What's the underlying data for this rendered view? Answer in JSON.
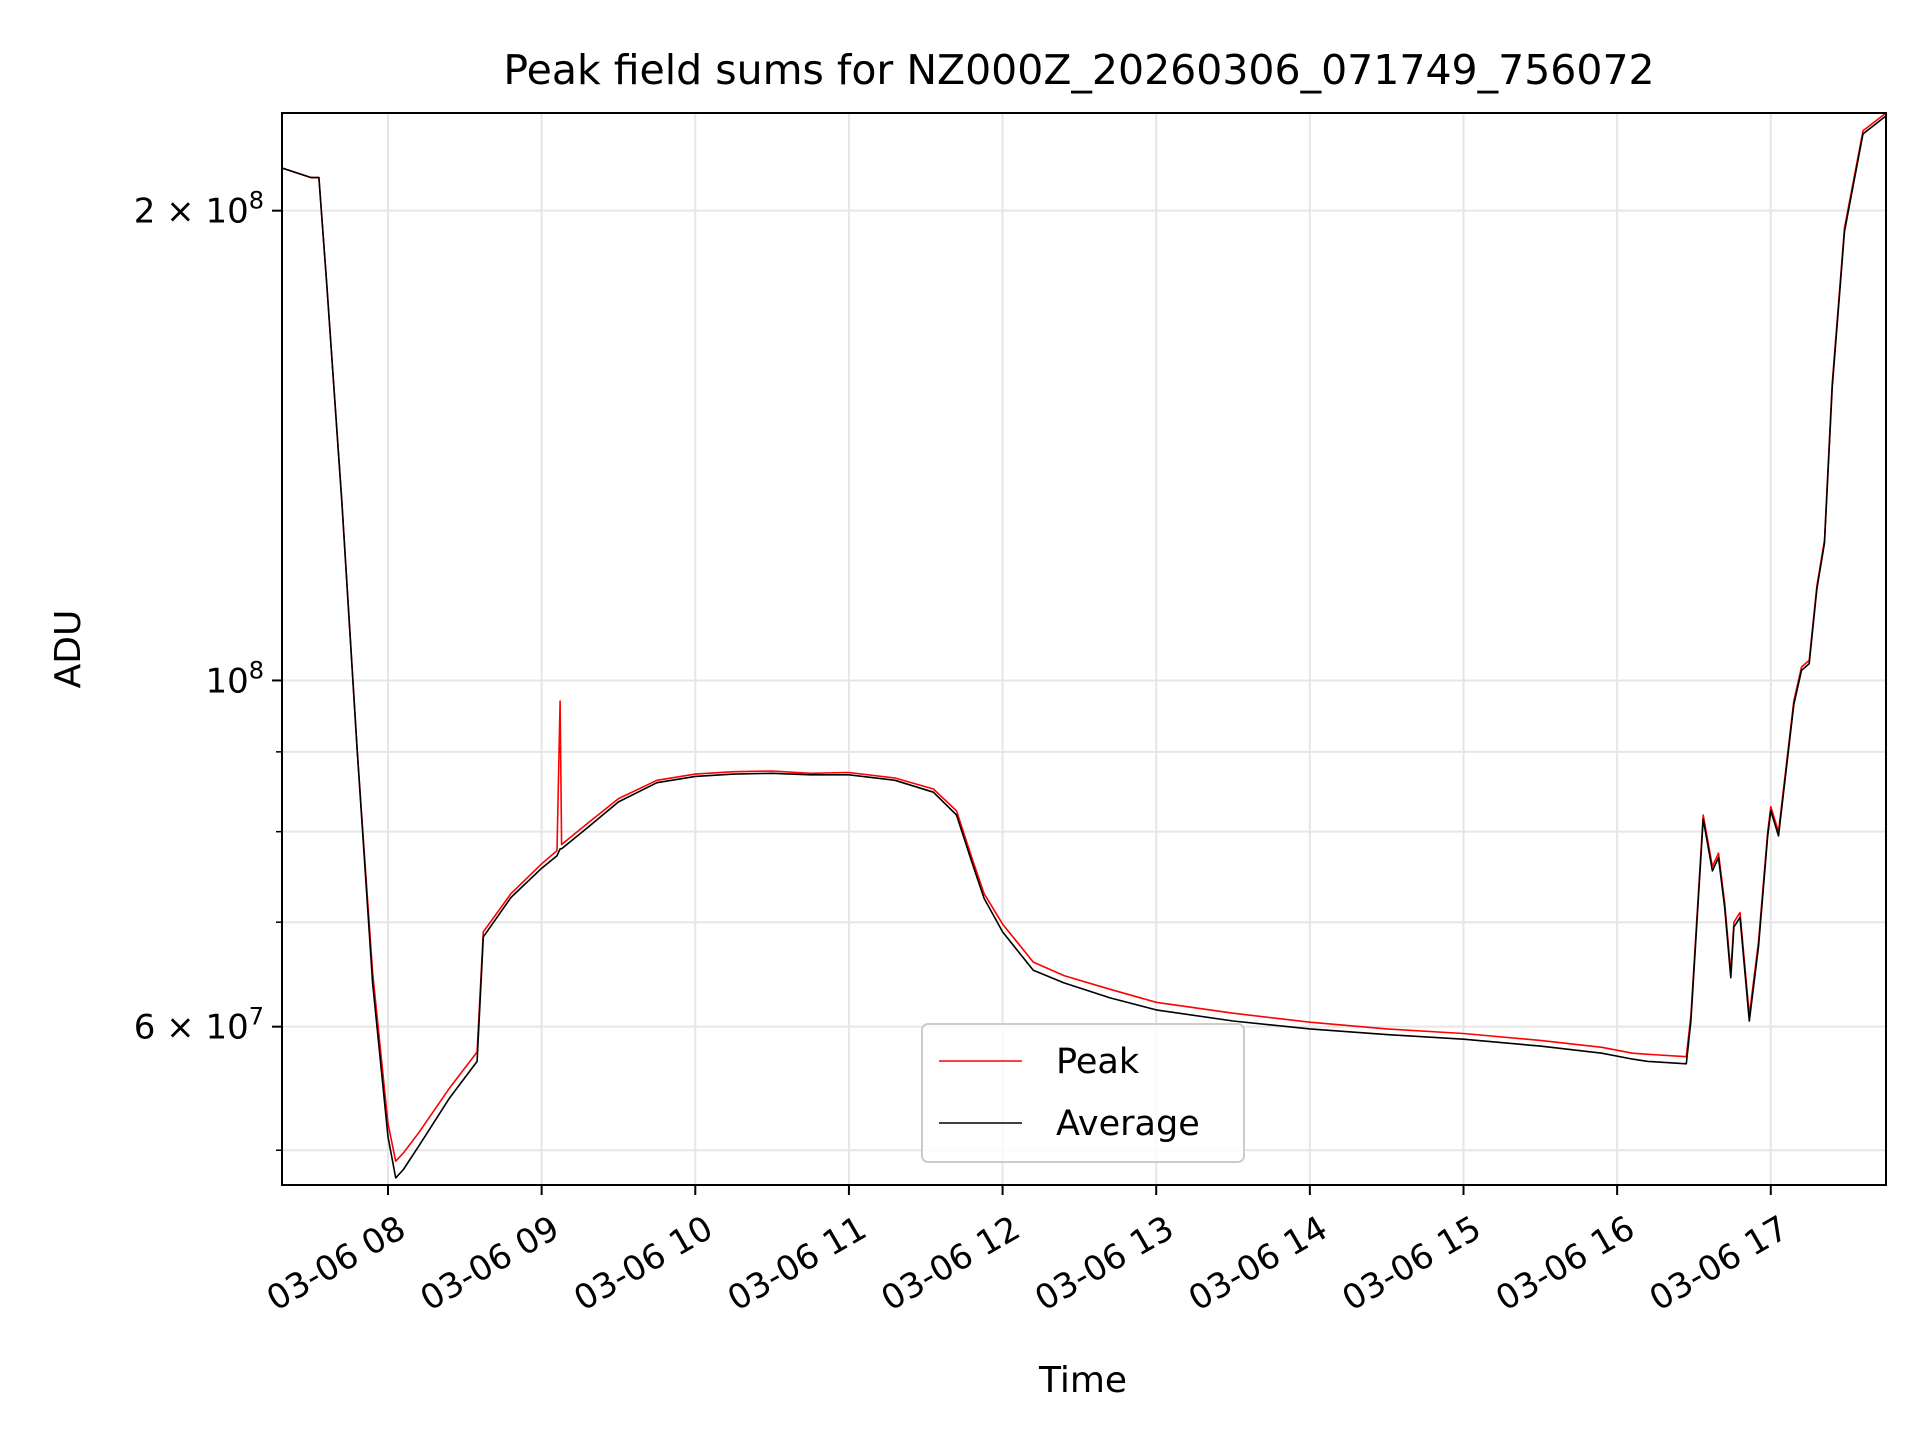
{
  "chart_data": {
    "type": "line",
    "title": "Peak field sums for NZ000Z_20260306_071749_756072",
    "xlabel": "Time",
    "ylabel": "ADU",
    "yscale": "log",
    "ylim": [
      47500000,
      231000000
    ],
    "xlim_hours": [
      7.31,
      17.75
    ],
    "grid": true,
    "legend_position": "lower-center",
    "x_tick_labels": [
      "03-06 08",
      "03-06 09",
      "03-06 10",
      "03-06 11",
      "03-06 12",
      "03-06 13",
      "03-06 14",
      "03-06 15",
      "03-06 16",
      "03-06 17"
    ],
    "x_tick_hours": [
      8,
      9,
      10,
      11,
      12,
      13,
      14,
      15,
      16,
      17
    ],
    "y_tick_labels": [
      {
        "value": 200000000,
        "mantissa": "2",
        "exp": "8"
      },
      {
        "value": 100000000,
        "mantissa": "",
        "exp": "8"
      },
      {
        "value": 60000000,
        "mantissa": "6",
        "exp": "7"
      }
    ],
    "y_minor_ticks": [
      50000000,
      70000000,
      80000000,
      90000000
    ],
    "series": [
      {
        "name": "Peak",
        "color": "#ff0000",
        "x": [
          7.31,
          7.5,
          7.55,
          7.6,
          7.7,
          7.8,
          7.9,
          8.0,
          8.05,
          8.1,
          8.2,
          8.4,
          8.58,
          8.62,
          8.8,
          9.0,
          9.1,
          9.12,
          9.13,
          9.3,
          9.5,
          9.75,
          10.0,
          10.25,
          10.5,
          10.75,
          11.0,
          11.3,
          11.55,
          11.7,
          11.8,
          11.88,
          12.0,
          12.2,
          12.4,
          12.7,
          13.0,
          13.5,
          14.0,
          14.5,
          15.0,
          15.5,
          15.9,
          16.1,
          16.2,
          16.45,
          16.48,
          16.56,
          16.62,
          16.66,
          16.7,
          16.74,
          16.76,
          16.8,
          16.86,
          16.92,
          16.98,
          17.0,
          17.05,
          17.15,
          17.2,
          17.25,
          17.3,
          17.35,
          17.4,
          17.48,
          17.6,
          17.75
        ],
        "y": [
          213000000,
          210000000,
          210000000,
          180000000,
          130000000,
          90000000,
          65000000,
          52000000,
          49200000,
          49800000,
          51300000,
          54800000,
          57800000,
          69000000,
          73000000,
          76300000,
          77800000,
          97000000,
          78500000,
          81000000,
          84000000,
          86300000,
          87100000,
          87400000,
          87500000,
          87200000,
          87300000,
          86600000,
          85200000,
          82500000,
          77000000,
          73000000,
          69800000,
          66000000,
          64700000,
          63400000,
          62200000,
          61200000,
          60400000,
          59800000,
          59400000,
          58800000,
          58200000,
          57700000,
          57600000,
          57400000,
          61000000,
          82000000,
          76000000,
          77500000,
          72000000,
          65000000,
          70000000,
          71000000,
          61000000,
          68000000,
          80000000,
          83000000,
          80000000,
          97000000,
          102000000,
          103000000,
          115000000,
          123000000,
          155000000,
          195000000,
          225000000,
          231000000
        ]
      },
      {
        "name": "Average",
        "color": "#000000",
        "x": [
          7.31,
          7.5,
          7.55,
          7.6,
          7.7,
          7.8,
          7.9,
          8.0,
          8.05,
          8.1,
          8.2,
          8.4,
          8.58,
          8.62,
          8.8,
          9.0,
          9.1,
          9.12,
          9.13,
          9.3,
          9.5,
          9.75,
          10.0,
          10.25,
          10.5,
          10.75,
          11.0,
          11.3,
          11.55,
          11.7,
          11.8,
          11.88,
          12.0,
          12.2,
          12.4,
          12.7,
          13.0,
          13.5,
          14.0,
          14.5,
          15.0,
          15.5,
          15.9,
          16.1,
          16.2,
          16.45,
          16.48,
          16.56,
          16.62,
          16.66,
          16.7,
          16.74,
          16.76,
          16.8,
          16.86,
          16.92,
          16.98,
          17.0,
          17.05,
          17.15,
          17.2,
          17.25,
          17.3,
          17.35,
          17.4,
          17.48,
          17.6,
          17.75
        ],
        "y": [
          213000000,
          210000000,
          210000000,
          180000000,
          130000000,
          90000000,
          64000000,
          51000000,
          48000000,
          48600000,
          50300000,
          54000000,
          57000000,
          68500000,
          72600000,
          75800000,
          77200000,
          78000000,
          78000000,
          80500000,
          83600000,
          86000000,
          86800000,
          87100000,
          87200000,
          87000000,
          87000000,
          86300000,
          84800000,
          82000000,
          76500000,
          72500000,
          69000000,
          65200000,
          64000000,
          62600000,
          61500000,
          60500000,
          59800000,
          59300000,
          58900000,
          58300000,
          57700000,
          57200000,
          57000000,
          56800000,
          60500000,
          81500000,
          75500000,
          77000000,
          71500000,
          64500000,
          69500000,
          70500000,
          60500000,
          67500000,
          79500000,
          82500000,
          79500000,
          96500000,
          101500000,
          102500000,
          114500000,
          122500000,
          154000000,
          194000000,
          224000000,
          230000000
        ]
      }
    ]
  }
}
